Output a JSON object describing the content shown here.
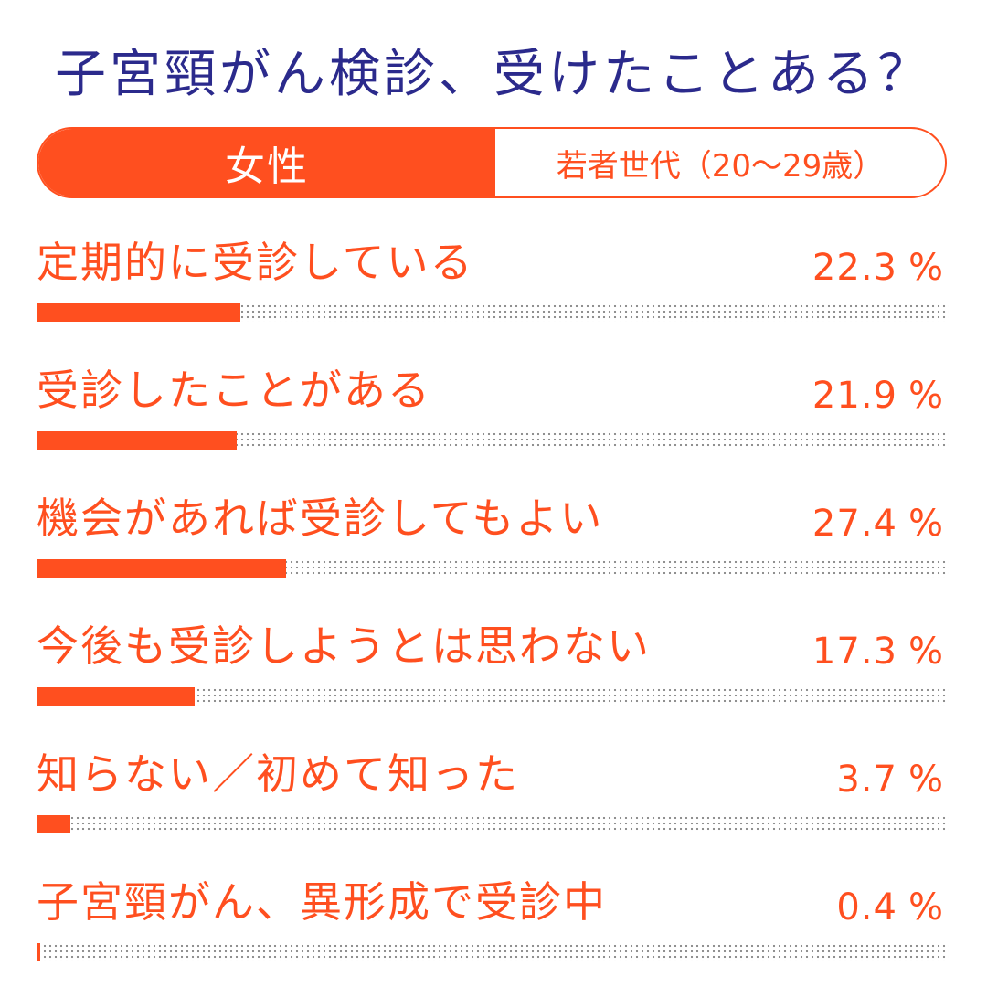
{
  "title": "子宮頸がん検診、受けたことある？",
  "tabs": {
    "left": "女性",
    "right": "若者世代（20〜29歳）"
  },
  "colors": {
    "accent": "#ff4f1f",
    "title": "#2b2a8c"
  },
  "chart_data": {
    "type": "bar",
    "orientation": "horizontal",
    "unit": "%",
    "xlim": [
      0,
      100
    ],
    "categories": [
      "定期的に受診している",
      "受診したことがある",
      "機会があれば受診してもよい",
      "今後も受診しようとは思わない",
      "知らない／初めて知った",
      "子宮頸がん、異形成で受診中"
    ],
    "values": [
      22.3,
      21.9,
      27.4,
      17.3,
      3.7,
      0.4
    ],
    "value_labels": [
      "22.3",
      "21.9",
      "27.4",
      "17.3",
      "3.7",
      "0.4"
    ]
  }
}
